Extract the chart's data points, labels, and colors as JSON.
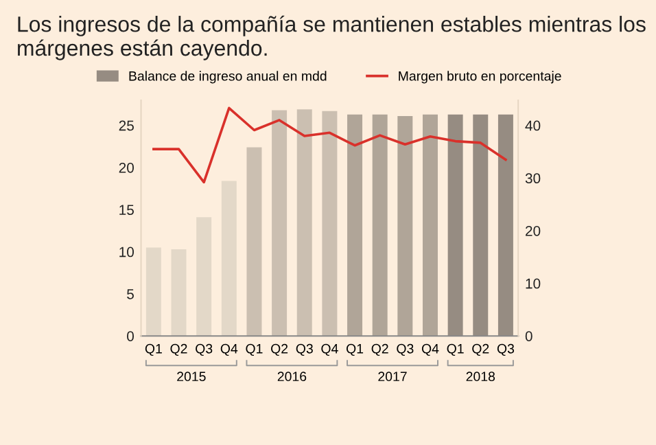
{
  "chart_data": {
    "type": "bar",
    "title": "Los ingresos de la compañía se mantienen estables mientras los márgenes están cayendo.",
    "categories": [
      "Q1",
      "Q2",
      "Q3",
      "Q4",
      "Q1",
      "Q2",
      "Q3",
      "Q4",
      "Q1",
      "Q2",
      "Q3",
      "Q4",
      "Q1",
      "Q2",
      "Q3"
    ],
    "series": [
      {
        "name": "Balance de ingreso anual en mdd",
        "colors": [
          "#e3d8c8",
          "#e3d8c8",
          "#e3d8c8",
          "#e3d8c8",
          "#cbbfb1",
          "#cbbfb1",
          "#cbbfb1",
          "#cbbfb1",
          "#b0a598",
          "#b0a598",
          "#b0a598",
          "#b0a598",
          "#968c82",
          "#968c82",
          "#968c82"
        ],
        "values": [
          10.5,
          10.3,
          14.1,
          18.4,
          22.4,
          26.8,
          26.9,
          26.7,
          26.3,
          26.3,
          26.1,
          26.3,
          26.3,
          26.3,
          26.3
        ]
      },
      {
        "name": "Margen bruto en porcentaje",
        "type": "line",
        "axis": "y2",
        "color": "#d9312b",
        "marker": "none",
        "line_style": "solid",
        "values": [
          35.5,
          35.5,
          29.2,
          43.3,
          39.1,
          41.0,
          38.0,
          38.6,
          36.2,
          38.1,
          36.4,
          37.9,
          37.0,
          36.7,
          33.5
        ]
      }
    ],
    "ylim": [
      0,
      28
    ],
    "yticks": [
      0,
      5,
      10,
      15,
      20,
      25
    ],
    "y2lim": [
      0,
      44.8
    ],
    "y2ticks": [
      0,
      10,
      20,
      30,
      40
    ],
    "annotations": [
      "2015",
      "2016",
      "2017",
      "2018"
    ],
    "grid": false,
    "legend": "top"
  }
}
